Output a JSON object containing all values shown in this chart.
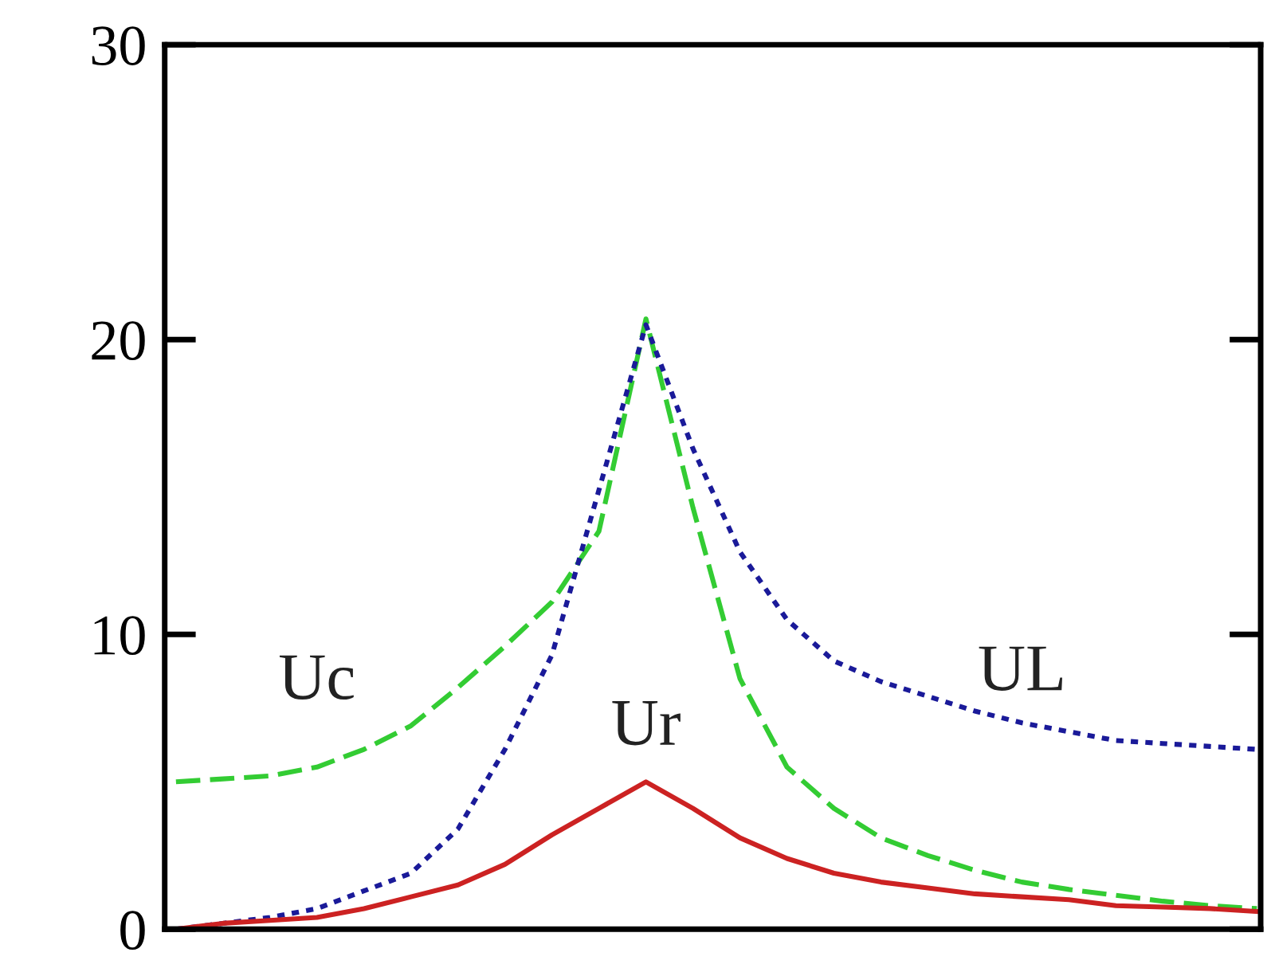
{
  "chart_data": {
    "type": "line",
    "categories": [
      null,
      null,
      null,
      null,
      null,
      null,
      null,
      null,
      null,
      null,
      null,
      null,
      null,
      null,
      null,
      null,
      null,
      null,
      null,
      null,
      null,
      null,
      null,
      null
    ],
    "ylim": [
      0,
      30
    ],
    "yticks": [
      0,
      10,
      20,
      30
    ],
    "tick_labels": "y",
    "grid": false,
    "series": [
      {
        "name": "Uc",
        "color": "#33cc33",
        "line_style": "dashed",
        "values": [
          5.0,
          5.1,
          5.2,
          5.5,
          6.1,
          6.9,
          8.2,
          9.6,
          11.1,
          13.5,
          20.7,
          14.3,
          8.5,
          5.5,
          4.1,
          3.1,
          2.5,
          2.0,
          1.6,
          1.35,
          1.15,
          0.95,
          0.8,
          0.7
        ]
      },
      {
        "name": "UL",
        "color": "#1a1a99",
        "line_style": "dotted",
        "values": [
          0.0,
          0.2,
          0.4,
          0.7,
          1.3,
          1.9,
          3.4,
          6.1,
          9.3,
          14.9,
          20.5,
          16.3,
          12.8,
          10.5,
          9.1,
          8.4,
          7.9,
          7.4,
          7.0,
          6.7,
          6.4,
          6.3,
          6.2,
          6.1
        ]
      },
      {
        "name": "Ur",
        "color": "#cc2222",
        "line_style": "solid",
        "values": [
          0.0,
          0.2,
          0.3,
          0.4,
          0.7,
          1.1,
          1.5,
          2.2,
          3.2,
          4.1,
          5.0,
          4.1,
          3.1,
          2.4,
          1.9,
          1.6,
          1.4,
          1.2,
          1.1,
          1.0,
          0.8,
          0.75,
          0.7,
          0.6
        ]
      }
    ]
  }
}
